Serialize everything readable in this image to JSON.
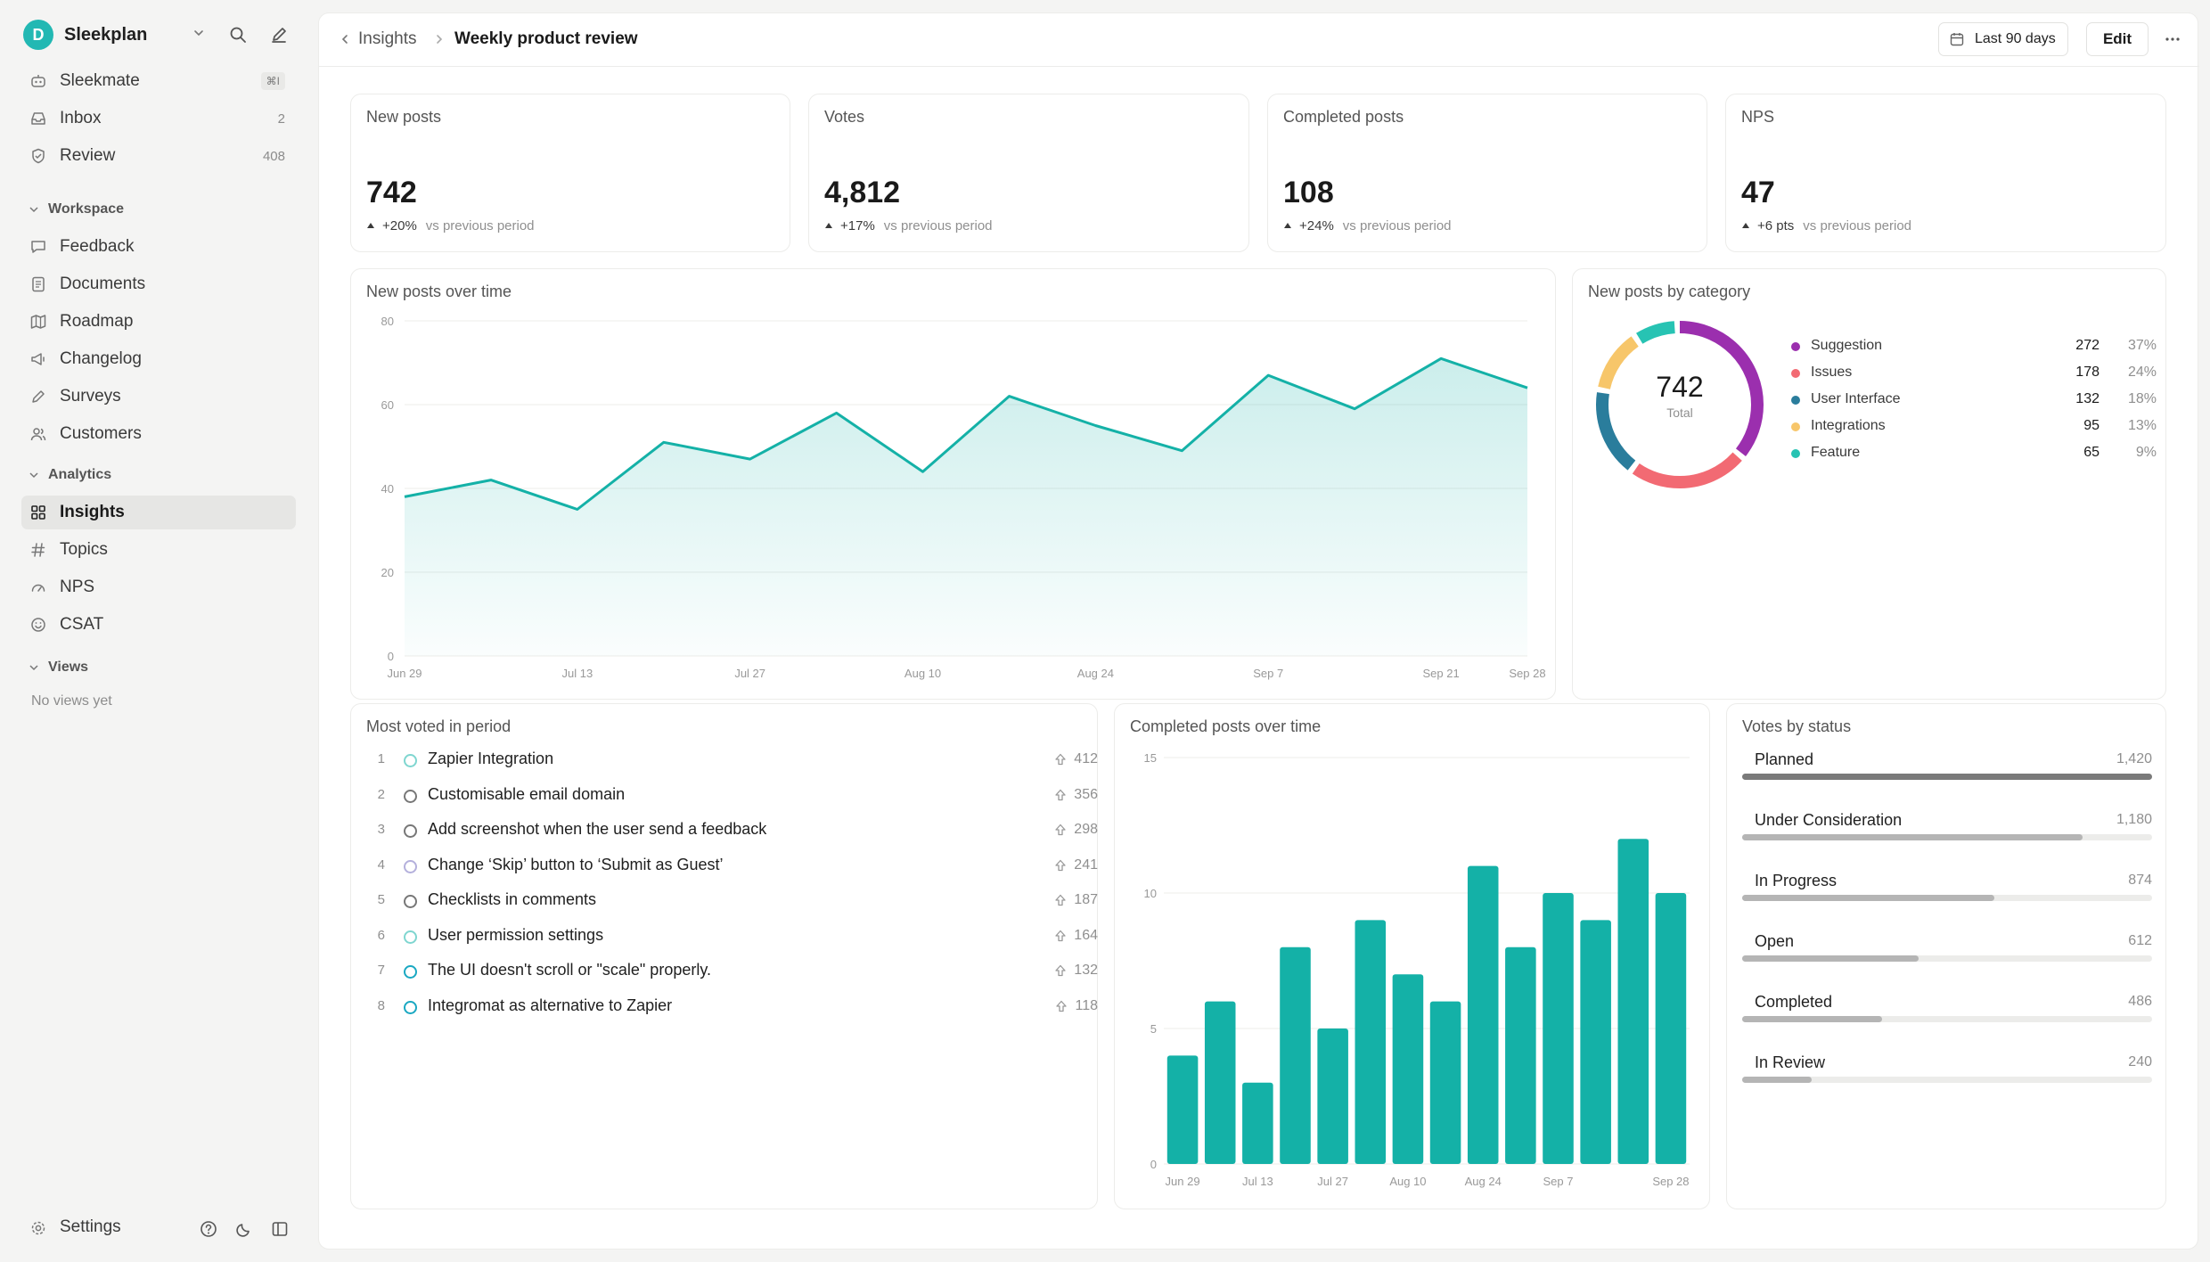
{
  "brand": {
    "initial": "D",
    "name": "Sleekplan"
  },
  "sidebar": {
    "top_items": [
      {
        "label": "Sleekmate",
        "shortcut": "⌘I"
      },
      {
        "label": "Inbox",
        "count": "2"
      },
      {
        "label": "Review",
        "count": "408"
      }
    ],
    "workspace_title": "Workspace",
    "workspace_items": [
      {
        "label": "Feedback"
      },
      {
        "label": "Documents"
      },
      {
        "label": "Roadmap"
      },
      {
        "label": "Changelog"
      },
      {
        "label": "Surveys"
      },
      {
        "label": "Customers"
      }
    ],
    "analytics_title": "Analytics",
    "analytics_items": [
      {
        "label": "Insights",
        "active": true
      },
      {
        "label": "Topics"
      },
      {
        "label": "NPS"
      },
      {
        "label": "CSAT"
      }
    ],
    "views_title": "Views",
    "views_empty": "No views yet",
    "settings_label": "Settings"
  },
  "header": {
    "breadcrumb_parent": "Insights",
    "breadcrumb_current": "Weekly product review",
    "date_range": "Last 90 days",
    "edit_label": "Edit"
  },
  "stats": [
    {
      "title": "New posts",
      "value": "742",
      "delta": "+20%",
      "vs": "vs previous period"
    },
    {
      "title": "Votes",
      "value": "4,812",
      "delta": "+17%",
      "vs": "vs previous period"
    },
    {
      "title": "Completed posts",
      "value": "108",
      "delta": "+24%",
      "vs": "vs previous period"
    },
    {
      "title": "NPS",
      "value": "47",
      "delta": "+6 pts",
      "vs": "vs previous period"
    }
  ],
  "colors": {
    "accent": "#14b1a7",
    "suggestion": "#9b2fae",
    "issues": "#f26a73",
    "ui": "#2a7d9c",
    "integrations": "#f7c66a",
    "feature": "#27c3b3"
  },
  "chart_data": [
    {
      "type": "area",
      "title": "New posts over time",
      "x": [
        "Jun 29",
        "Jul 6",
        "Jul 13",
        "Jul 20",
        "Jul 27",
        "Aug 3",
        "Aug 10",
        "Aug 17",
        "Aug 24",
        "Aug 31",
        "Sep 7",
        "Sep 14",
        "Sep 21",
        "Sep 28"
      ],
      "x_tick_labels": [
        "Jun 29",
        "Jul 13",
        "Jul 27",
        "Aug 10",
        "Aug 24",
        "Sep 7",
        "Sep 21",
        "Sep 28"
      ],
      "values": [
        38,
        42,
        35,
        51,
        47,
        58,
        44,
        62,
        55,
        49,
        67,
        59,
        71,
        64
      ],
      "ylim": [
        0,
        80
      ],
      "yticks": [
        0,
        20,
        40,
        60,
        80
      ],
      "color": "#14b1a7",
      "grid": true
    },
    {
      "type": "pie",
      "title": "New posts by category",
      "center_value": "742",
      "center_label": "Total",
      "slices": [
        {
          "name": "Suggestion",
          "value": 272,
          "pct": "37%",
          "color": "#9b2fae"
        },
        {
          "name": "Issues",
          "value": 178,
          "pct": "24%",
          "color": "#f26a73"
        },
        {
          "name": "User Interface",
          "value": 132,
          "pct": "18%",
          "color": "#2a7d9c"
        },
        {
          "name": "Integrations",
          "value": 95,
          "pct": "13%",
          "color": "#f7c66a"
        },
        {
          "name": "Feature",
          "value": 65,
          "pct": "9%",
          "color": "#27c3b3"
        }
      ]
    },
    {
      "type": "bar",
      "title": "Completed posts over time",
      "categories": [
        "Jun 29",
        "Jul 6",
        "Jul 13",
        "Jul 20",
        "Jul 27",
        "Aug 3",
        "Aug 10",
        "Aug 17",
        "Aug 24",
        "Aug 31",
        "Sep 7",
        "Sep 14",
        "Sep 21",
        "Sep 28"
      ],
      "x_tick_labels": [
        "Jun 29",
        "Jul 13",
        "Jul 27",
        "Aug 10",
        "Aug 24",
        "Sep 7",
        "Sep 28"
      ],
      "values": [
        4,
        6,
        3,
        8,
        5,
        9,
        7,
        6,
        11,
        8,
        10,
        9,
        12,
        10
      ],
      "ylim": [
        0,
        15
      ],
      "yticks": [
        0,
        5,
        10,
        15
      ],
      "color": "#14b1a7",
      "grid": true
    }
  ],
  "most_voted": {
    "title": "Most voted in period",
    "items": [
      {
        "rank": "1",
        "title": "Zapier Integration",
        "votes": "412",
        "status_color": "#7fd6d0"
      },
      {
        "rank": "2",
        "title": "Customisable email domain",
        "votes": "356",
        "status_color": "#777777"
      },
      {
        "rank": "3",
        "title": "Add screenshot when the user send a feedback",
        "votes": "298",
        "status_color": "#777777"
      },
      {
        "rank": "4",
        "title": "Change ‘Skip’ button to ‘Submit as Guest’",
        "votes": "241",
        "status_color": "#b4b0dc"
      },
      {
        "rank": "5",
        "title": "Checklists in comments",
        "votes": "187",
        "status_color": "#777777"
      },
      {
        "rank": "6",
        "title": "User permission settings",
        "votes": "164",
        "status_color": "#7fd6d0"
      },
      {
        "rank": "7",
        "title": "The UI doesn't scroll or \"scale\" properly.",
        "votes": "132",
        "status_color": "#1aa8c2"
      },
      {
        "rank": "8",
        "title": "Integromat as alternative to Zapier",
        "votes": "118",
        "status_color": "#1aa8c2"
      }
    ]
  },
  "votes_by_status": {
    "title": "Votes by status",
    "max": 1420,
    "items": [
      {
        "label": "Planned",
        "count": "1,420",
        "value": 1420,
        "fill_color": "#7a7a7a"
      },
      {
        "label": "Under Consideration",
        "count": "1,180",
        "value": 1180,
        "fill_color": "#b5b5b5"
      },
      {
        "label": "In Progress",
        "count": "874",
        "value": 874,
        "fill_color": "#b5b5b5"
      },
      {
        "label": "Open",
        "count": "612",
        "value": 612,
        "fill_color": "#b5b5b5"
      },
      {
        "label": "Completed",
        "count": "486",
        "value": 486,
        "fill_color": "#b5b5b5"
      },
      {
        "label": "In Review",
        "count": "240",
        "value": 240,
        "fill_color": "#b5b5b5"
      }
    ]
  }
}
